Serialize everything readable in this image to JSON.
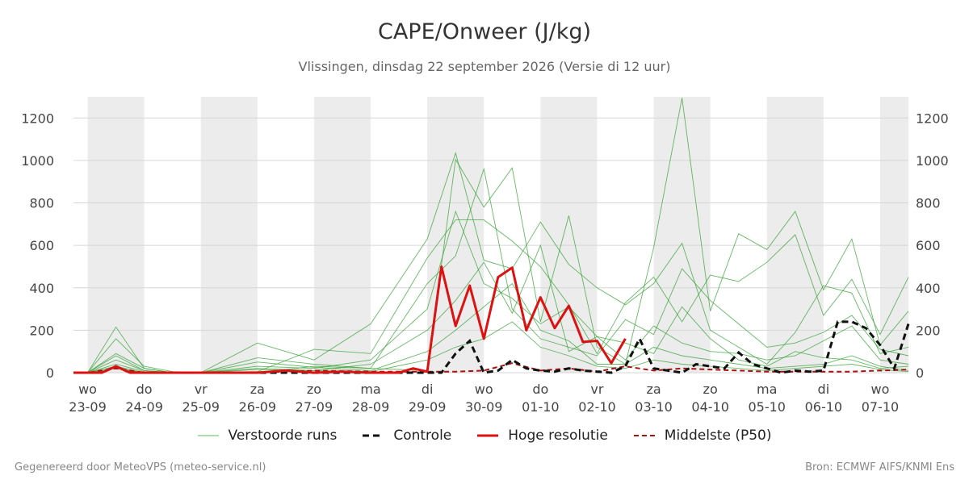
{
  "title": "CAPE/Onweer (J/kg)",
  "subtitle": "Vlissingen, dinsdag 22 september 2026 (Versie di 12 uur)",
  "footer": {
    "left": "Gegenereerd door MeteoVPS (meteo-service.nl)",
    "right": "Bron: ECMWF AIFS/KNMI Ens"
  },
  "legend": [
    {
      "label": "Verstoorde runs",
      "color": "#5cb85c",
      "style": "thin"
    },
    {
      "label": "Controle",
      "color": "#111111",
      "style": "dashed-thick"
    },
    {
      "label": "Hoge resolutie",
      "color": "#dd1111",
      "style": "solid-thick"
    },
    {
      "label": "Middelste (P50)",
      "color": "#aa1111",
      "style": "dashed"
    }
  ],
  "chart_data": {
    "type": "line",
    "ylim": [
      0,
      1300
    ],
    "y_ticks": [
      "0",
      "200",
      "400",
      "600",
      "800",
      "1000",
      "1200"
    ],
    "grid": true,
    "x_range_days": [
      -0.25,
      14.5
    ],
    "x_ticks": [
      {
        "day": "wo",
        "date": "23-09"
      },
      {
        "day": "do",
        "date": "24-09"
      },
      {
        "day": "vr",
        "date": "25-09"
      },
      {
        "day": "za",
        "date": "26-09"
      },
      {
        "day": "zo",
        "date": "27-09"
      },
      {
        "day": "ma",
        "date": "28-09"
      },
      {
        "day": "di",
        "date": "29-09"
      },
      {
        "day": "wo",
        "date": "30-09"
      },
      {
        "day": "do",
        "date": "01-10"
      },
      {
        "day": "vr",
        "date": "02-10"
      },
      {
        "day": "za",
        "date": "03-10"
      },
      {
        "day": "zo",
        "date": "04-10"
      },
      {
        "day": "ma",
        "date": "05-10"
      },
      {
        "day": "di",
        "date": "06-10"
      },
      {
        "day": "wo",
        "date": "07-10"
      }
    ],
    "shaded_days": [
      0,
      2,
      4,
      6,
      8,
      10,
      12,
      14
    ],
    "hires": {
      "name": "Hoge resolutie",
      "x": [
        -0.25,
        0,
        0.25,
        0.5,
        0.75,
        1,
        1.5,
        2,
        2.5,
        3,
        3.5,
        4,
        4.5,
        5,
        5.5,
        5.75,
        6,
        6.25,
        6.5,
        6.75,
        7,
        7.25,
        7.5,
        7.75,
        8,
        8.25,
        8.5,
        8.75,
        9,
        9.25,
        9.5
      ],
      "y": [
        0,
        0,
        0,
        30,
        0,
        0,
        0,
        0,
        0,
        0,
        10,
        0,
        5,
        0,
        0,
        20,
        5,
        500,
        220,
        410,
        160,
        450,
        495,
        200,
        355,
        210,
        315,
        145,
        150,
        45,
        160
      ]
    },
    "control": {
      "name": "Controle",
      "x": [
        -0.25,
        0,
        0.25,
        0.5,
        0.75,
        1,
        2,
        3,
        4,
        5,
        6,
        6.25,
        6.5,
        6.75,
        7,
        7.25,
        7.5,
        7.75,
        8,
        8.25,
        8.5,
        8.75,
        9,
        9.25,
        9.5,
        9.75,
        10,
        10.25,
        10.5,
        10.75,
        11,
        11.25,
        11.5,
        11.75,
        12,
        12.25,
        12.5,
        12.75,
        13,
        13.25,
        13.5,
        13.75,
        14,
        14.25,
        14.5
      ],
      "y": [
        0,
        0,
        0,
        30,
        0,
        0,
        0,
        0,
        0,
        0,
        0,
        0,
        90,
        150,
        0,
        10,
        60,
        20,
        10,
        5,
        20,
        10,
        5,
        0,
        30,
        160,
        20,
        10,
        0,
        40,
        30,
        20,
        95,
        40,
        20,
        0,
        10,
        5,
        10,
        240,
        240,
        210,
        130,
        20,
        230
      ]
    },
    "p50": {
      "name": "Middelste (P50)",
      "x": [
        -0.25,
        0,
        0.5,
        1,
        2,
        3,
        4,
        5,
        6,
        6.5,
        7,
        7.5,
        8,
        8.5,
        9,
        9.5,
        10,
        10.5,
        11,
        11.5,
        12,
        12.5,
        13,
        13.5,
        14,
        14.5
      ],
      "y": [
        0,
        0,
        20,
        0,
        0,
        0,
        10,
        5,
        5,
        5,
        10,
        45,
        10,
        20,
        5,
        30,
        10,
        20,
        15,
        10,
        5,
        5,
        5,
        5,
        10,
        15
      ]
    },
    "members_sample": [
      {
        "x": [
          0,
          0.5,
          1,
          1.5,
          2,
          3,
          4,
          5,
          6,
          6.5,
          7,
          7.5,
          8,
          8.5,
          9,
          9.5,
          10,
          10.5,
          11,
          11.5,
          12,
          12.5,
          13,
          13.5,
          14,
          14.5
        ],
        "y": [
          0,
          215,
          20,
          0,
          0,
          0,
          30,
          20,
          10,
          1005,
          780,
          965,
          240,
          740,
          120,
          40,
          590,
          1295,
          290,
          655,
          580,
          760,
          390,
          630,
          130,
          290
        ]
      },
      {
        "x": [
          0,
          0.5,
          1,
          1.5,
          2,
          3,
          4,
          5,
          6,
          6.5,
          7,
          7.5,
          8,
          8.5,
          9,
          9.5,
          10,
          10.5,
          11,
          11.5,
          12,
          12.5,
          13,
          13.5,
          14,
          14.5
        ],
        "y": [
          0,
          160,
          30,
          5,
          0,
          5,
          110,
          90,
          540,
          720,
          720,
          620,
          500,
          320,
          90,
          330,
          450,
          240,
          460,
          430,
          520,
          650,
          270,
          440,
          180,
          450
        ]
      },
      {
        "x": [
          0,
          0.5,
          1,
          1.5,
          2,
          3,
          4,
          5,
          6,
          6.5,
          7,
          7.5,
          8,
          8.5,
          9,
          9.5,
          10,
          10.5,
          11,
          11.5,
          12,
          12.5,
          13,
          13.5,
          14,
          14.5
        ],
        "y": [
          0,
          90,
          20,
          0,
          0,
          140,
          60,
          230,
          630,
          1035,
          530,
          490,
          710,
          510,
          400,
          320,
          420,
          610,
          200,
          120,
          40,
          190,
          410,
          375,
          90,
          120
        ]
      },
      {
        "x": [
          0,
          0.5,
          1,
          1.5,
          2,
          3,
          4,
          5,
          6,
          6.5,
          7,
          7.5,
          8,
          8.5,
          9,
          9.5,
          10,
          10.5,
          11,
          11.5,
          12,
          12.5,
          13,
          13.5,
          14,
          14.5
        ],
        "y": [
          0,
          60,
          10,
          0,
          0,
          70,
          40,
          20,
          420,
          550,
          960,
          300,
          160,
          120,
          80,
          250,
          180,
          490,
          340,
          230,
          120,
          140,
          190,
          270,
          110,
          80
        ]
      },
      {
        "x": [
          0,
          0.5,
          1,
          1.5,
          2,
          3,
          4,
          5,
          6,
          6.5,
          7,
          7.5,
          8,
          8.5,
          9,
          9.5,
          10,
          10.5,
          11,
          11.5,
          12,
          12.5,
          13,
          13.5,
          14,
          14.5
        ],
        "y": [
          0,
          40,
          5,
          0,
          0,
          30,
          20,
          60,
          300,
          760,
          420,
          350,
          230,
          310,
          170,
          60,
          220,
          140,
          100,
          90,
          60,
          80,
          150,
          220,
          60,
          40
        ]
      },
      {
        "x": [
          0,
          0.5,
          1,
          1.5,
          2,
          3,
          4,
          5,
          6,
          6.5,
          7,
          7.5,
          8,
          8.5,
          9,
          9.5,
          10,
          10.5,
          11,
          11.5,
          12,
          12.5,
          13,
          13.5,
          14,
          14.5
        ],
        "y": [
          0,
          80,
          10,
          0,
          0,
          20,
          10,
          40,
          200,
          340,
          520,
          280,
          600,
          100,
          170,
          140,
          90,
          310,
          160,
          60,
          30,
          100,
          70,
          60,
          20,
          30
        ]
      },
      {
        "x": [
          0,
          0.5,
          1,
          1.5,
          2,
          3,
          4,
          5,
          6,
          6.5,
          7,
          7.5,
          8,
          8.5,
          9,
          9.5,
          10,
          10.5,
          11,
          11.5,
          12,
          12.5,
          13,
          13.5,
          14,
          14.5
        ],
        "y": [
          0,
          30,
          0,
          0,
          0,
          50,
          25,
          10,
          100,
          200,
          310,
          420,
          200,
          150,
          40,
          40,
          120,
          80,
          60,
          40,
          20,
          30,
          40,
          80,
          30,
          10
        ]
      },
      {
        "x": [
          0,
          0.5,
          1,
          1.5,
          2,
          3,
          4,
          5,
          6,
          6.5,
          7,
          7.5,
          8,
          8.5,
          9,
          9.5,
          10,
          10.5,
          11,
          11.5,
          12,
          12.5,
          13,
          13.5,
          14,
          14.5
        ],
        "y": [
          0,
          20,
          0,
          0,
          0,
          15,
          10,
          5,
          60,
          120,
          160,
          240,
          120,
          80,
          30,
          20,
          60,
          40,
          30,
          20,
          10,
          20,
          30,
          40,
          15,
          5
        ]
      }
    ]
  }
}
